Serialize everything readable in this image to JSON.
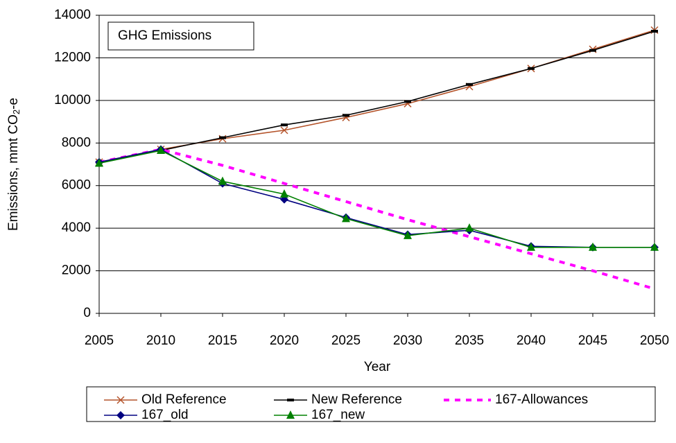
{
  "chart_data": {
    "type": "line",
    "annotation": "GHG Emissions",
    "x_label": "Year",
    "y_label": "Emissions, mmt CO",
    "y_label_sub": "2",
    "y_label_end": "-e",
    "x": [
      2005,
      2010,
      2015,
      2020,
      2025,
      2030,
      2035,
      2040,
      2045,
      2050
    ],
    "xlim": [
      2005,
      2050
    ],
    "xticks": [
      2005,
      2010,
      2015,
      2020,
      2025,
      2030,
      2035,
      2040,
      2045,
      2050
    ],
    "ylim": [
      0,
      14000
    ],
    "yticks": [
      0,
      2000,
      4000,
      6000,
      8000,
      10000,
      12000,
      14000
    ],
    "grid": true,
    "legend": "bottom",
    "series": [
      {
        "name": "Old Reference",
        "color": "#b4532a",
        "marker": "x",
        "dash": false,
        "values": [
          7100,
          7700,
          8200,
          8600,
          9200,
          9850,
          10650,
          11500,
          12400,
          13300
        ]
      },
      {
        "name": "New Reference",
        "color": "#000000",
        "marker": "dash",
        "dash": false,
        "values": [
          7100,
          7650,
          8250,
          8850,
          9300,
          9950,
          10750,
          11500,
          12350,
          13250
        ]
      },
      {
        "name": "167-Allowances",
        "color": "#ff00ff",
        "marker": "none",
        "dash": true,
        "values": [
          7100,
          7700,
          6950,
          6100,
          5250,
          4400,
          3600,
          2800,
          2000,
          1150
        ]
      },
      {
        "name": "167_old",
        "color": "#000080",
        "marker": "diamond",
        "dash": false,
        "values": [
          7100,
          7700,
          6100,
          5350,
          4500,
          3700,
          3900,
          3150,
          3100,
          3100
        ]
      },
      {
        "name": "167_new",
        "color": "#008000",
        "marker": "triangle",
        "dash": false,
        "values": [
          7050,
          7650,
          6200,
          5600,
          4450,
          3650,
          4000,
          3100,
          3100,
          3100
        ]
      }
    ]
  }
}
